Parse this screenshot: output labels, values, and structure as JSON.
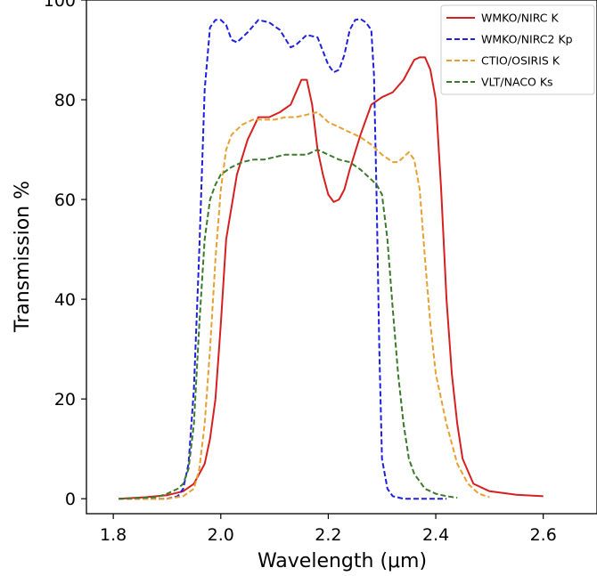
{
  "chart_data": {
    "type": "line",
    "title": "",
    "xlabel": "Wavelength (μm)",
    "ylabel": "Transmission %",
    "xlim": [
      1.75,
      2.7
    ],
    "ylim": [
      -3,
      100
    ],
    "xticks": [
      1.8,
      2.0,
      2.2,
      2.4,
      2.6
    ],
    "xtick_labels": [
      "1.8",
      "2.0",
      "2.2",
      "2.4",
      "2.6"
    ],
    "yticks": [
      0,
      20,
      40,
      60,
      80,
      100
    ],
    "ytick_labels": [
      "0",
      "20",
      "40",
      "60",
      "80",
      "100"
    ],
    "grid": false,
    "legend_position": "top-right",
    "series": [
      {
        "name": "WMKO/NIRC K",
        "color": "#d62020",
        "dash": "solid",
        "x": [
          1.81,
          1.86,
          1.9,
          1.93,
          1.95,
          1.97,
          1.98,
          1.99,
          2.0,
          2.01,
          2.03,
          2.05,
          2.07,
          2.09,
          2.11,
          2.13,
          2.15,
          2.16,
          2.17,
          2.18,
          2.19,
          2.2,
          2.21,
          2.22,
          2.23,
          2.24,
          2.26,
          2.28,
          2.3,
          2.32,
          2.34,
          2.35,
          2.36,
          2.37,
          2.38,
          2.39,
          2.4,
          2.41,
          2.42,
          2.43,
          2.44,
          2.45,
          2.47,
          2.5,
          2.55,
          2.6
        ],
        "y": [
          0,
          0.3,
          0.7,
          1.5,
          3,
          7,
          12,
          20,
          35,
          52,
          65,
          72,
          76.5,
          76.5,
          77.5,
          79,
          84,
          84,
          79,
          70,
          65,
          61,
          59.5,
          60,
          62,
          66,
          73,
          79,
          80.5,
          81.5,
          84,
          86,
          88,
          88.5,
          88.5,
          86,
          80,
          62,
          40,
          25,
          15,
          8,
          3,
          1.5,
          0.8,
          0.5
        ]
      },
      {
        "name": "WMKO/NIRC2 Kp",
        "color": "#1f1fe0",
        "dash": "dashed",
        "x": [
          1.81,
          1.9,
          1.92,
          1.93,
          1.94,
          1.95,
          1.96,
          1.97,
          1.98,
          1.99,
          2.0,
          2.01,
          2.02,
          2.03,
          2.05,
          2.07,
          2.09,
          2.11,
          2.13,
          2.14,
          2.16,
          2.18,
          2.2,
          2.21,
          2.22,
          2.23,
          2.24,
          2.25,
          2.26,
          2.27,
          2.28,
          2.285,
          2.29,
          2.295,
          2.3,
          2.31,
          2.32,
          2.34,
          2.37,
          2.4,
          2.42
        ],
        "y": [
          0,
          0,
          0.5,
          2,
          7,
          22,
          50,
          82,
          94.5,
          96,
          96,
          95,
          92,
          91.5,
          93.5,
          96,
          95.5,
          94,
          90.5,
          91,
          93,
          92.5,
          87,
          85.5,
          86,
          89,
          94,
          96,
          96.2,
          95.5,
          94,
          85,
          60,
          30,
          8,
          2,
          0.5,
          0,
          0,
          0,
          0
        ]
      },
      {
        "name": "CTIO/OSIRIS K",
        "color": "#e8a030",
        "dash": "dashed",
        "x": [
          1.81,
          1.9,
          1.93,
          1.95,
          1.96,
          1.97,
          1.98,
          1.99,
          2.0,
          2.01,
          2.02,
          2.04,
          2.06,
          2.08,
          2.1,
          2.12,
          2.14,
          2.16,
          2.18,
          2.2,
          2.22,
          2.24,
          2.26,
          2.28,
          2.3,
          2.32,
          2.33,
          2.34,
          2.35,
          2.36,
          2.37,
          2.38,
          2.39,
          2.4,
          2.42,
          2.44,
          2.46,
          2.48,
          2.5
        ],
        "y": [
          0,
          0,
          0.5,
          2,
          6,
          15,
          30,
          48,
          62,
          70,
          73,
          75,
          76,
          76,
          76,
          76.5,
          76.5,
          77,
          77.5,
          75.5,
          74.5,
          73.5,
          72.5,
          71,
          69,
          67.5,
          67.5,
          68.5,
          69.5,
          68,
          62,
          48,
          35,
          25,
          15,
          7,
          3,
          1,
          0.3
        ]
      },
      {
        "name": "VLT/NACO Ks",
        "color": "#3a7a2a",
        "dash": "dashed",
        "x": [
          1.81,
          1.88,
          1.9,
          1.92,
          1.93,
          1.94,
          1.95,
          1.96,
          1.97,
          1.98,
          1.99,
          2.0,
          2.02,
          2.04,
          2.06,
          2.08,
          2.1,
          2.12,
          2.14,
          2.16,
          2.18,
          2.2,
          2.22,
          2.24,
          2.26,
          2.28,
          2.29,
          2.3,
          2.31,
          2.32,
          2.33,
          2.34,
          2.35,
          2.36,
          2.38,
          2.4,
          2.42,
          2.44
        ],
        "y": [
          0,
          0.3,
          1,
          2,
          3,
          6,
          15,
          35,
          52,
          60,
          63,
          65,
          66.5,
          67.5,
          68,
          68,
          68.5,
          69,
          69,
          69,
          70,
          69,
          68,
          67.5,
          66,
          64,
          63,
          61,
          52,
          38,
          25,
          15,
          8,
          5,
          2,
          1,
          0.5,
          0.2
        ]
      }
    ]
  }
}
